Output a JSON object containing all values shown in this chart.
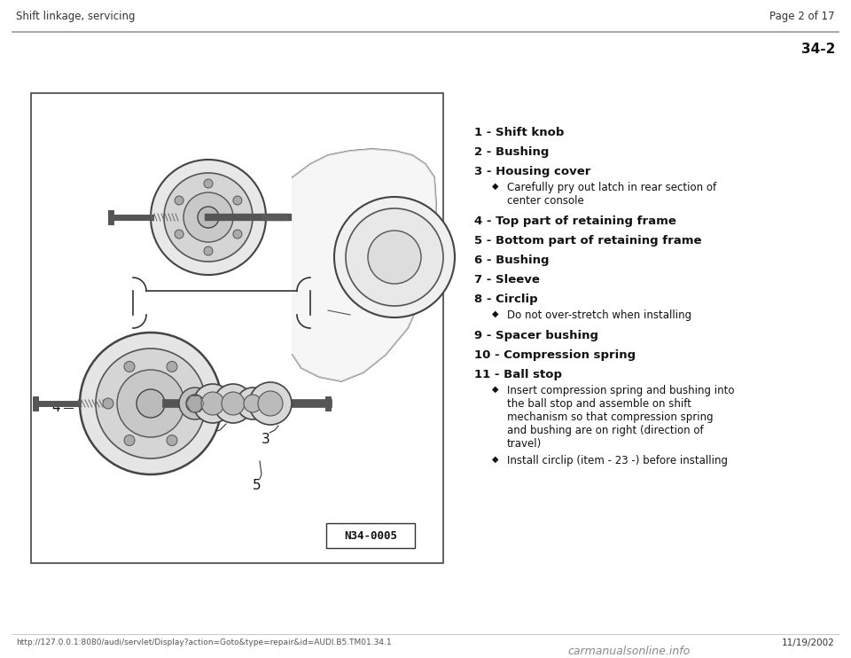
{
  "bg_color": "#ffffff",
  "header_left": "Shift linkage, servicing",
  "header_right": "Page 2 of 17",
  "header_font_size": 8.5,
  "section_number": "34-2",
  "footer_url": "http://127.0.0.1:8080/audi/servlet/Display?action=Goto&type=repair&id=AUDI.B5.TM01.34.1",
  "footer_right": "11/19/2002",
  "footer_watermark": "carmanualsonline.info",
  "image_label": "N34-0005",
  "items": [
    {
      "num": "1",
      "label": "Shift knob",
      "notes": []
    },
    {
      "num": "2",
      "label": "Bushing",
      "notes": []
    },
    {
      "num": "3",
      "label": "Housing cover",
      "notes": [
        "Carefully pry out latch in rear section of\ncenter console"
      ]
    },
    {
      "num": "4",
      "label": "Top part of retaining frame",
      "notes": []
    },
    {
      "num": "5",
      "label": "Bottom part of retaining frame",
      "notes": []
    },
    {
      "num": "6",
      "label": "Bushing",
      "notes": []
    },
    {
      "num": "7",
      "label": "Sleeve",
      "notes": []
    },
    {
      "num": "8",
      "label": "Circlip",
      "notes": [
        "Do not over-stretch when installing"
      ]
    },
    {
      "num": "9",
      "label": "Spacer bushing",
      "notes": []
    },
    {
      "num": "10",
      "label": "Compression spring",
      "notes": []
    },
    {
      "num": "11",
      "label": "Ball stop",
      "notes": [
        "Insert compression spring and bushing into\nthe ball stop and assemble on shift\nmechanism so that compression spring\nand bushing are on right (direction of\ntravel)",
        "Install circlip (item - 23 -) before installing"
      ]
    }
  ]
}
